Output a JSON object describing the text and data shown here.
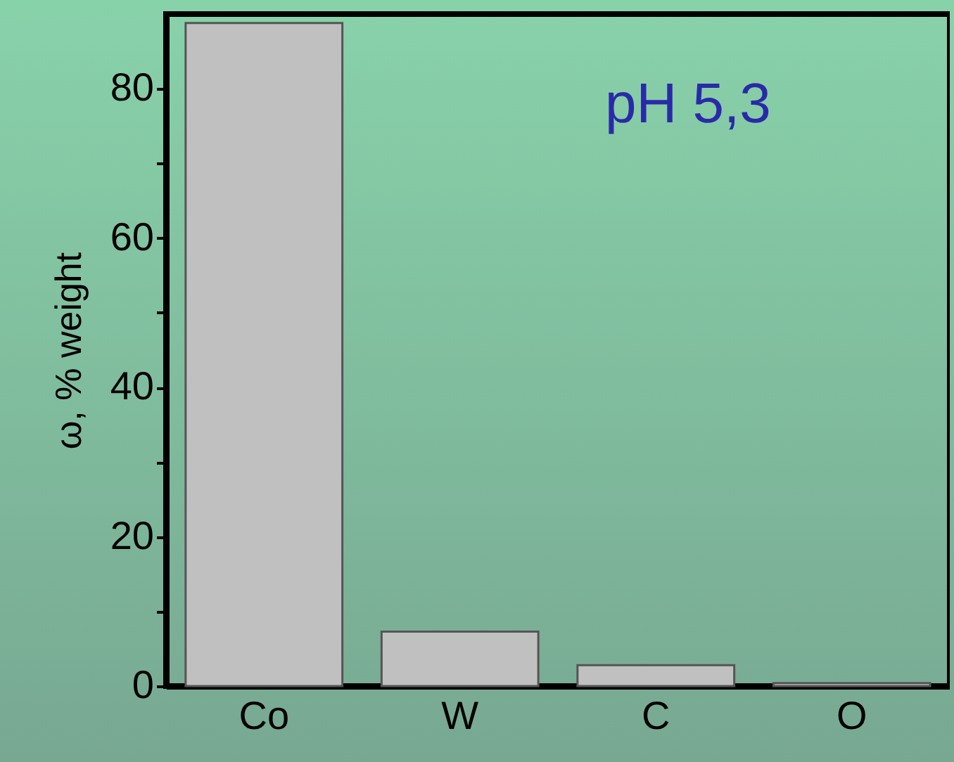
{
  "chart_data": {
    "type": "bar",
    "ylabel": "ω, % weight",
    "categories": [
      "Co",
      "W",
      "C",
      "O"
    ],
    "values": [
      88.8,
      7.3,
      2.8,
      0.4
    ],
    "color": "#c0c0c0",
    "ylim": [
      0,
      90
    ],
    "yticks": [
      0,
      {
        "value": 10,
        "label": null
      },
      20,
      {
        "value": 30,
        "label": null
      },
      40,
      {
        "value": 50,
        "label": null
      },
      60,
      {
        "value": 70,
        "label": null
      },
      80
    ],
    "annotations": [
      "pH 5,3"
    ],
    "grid": false
  }
}
